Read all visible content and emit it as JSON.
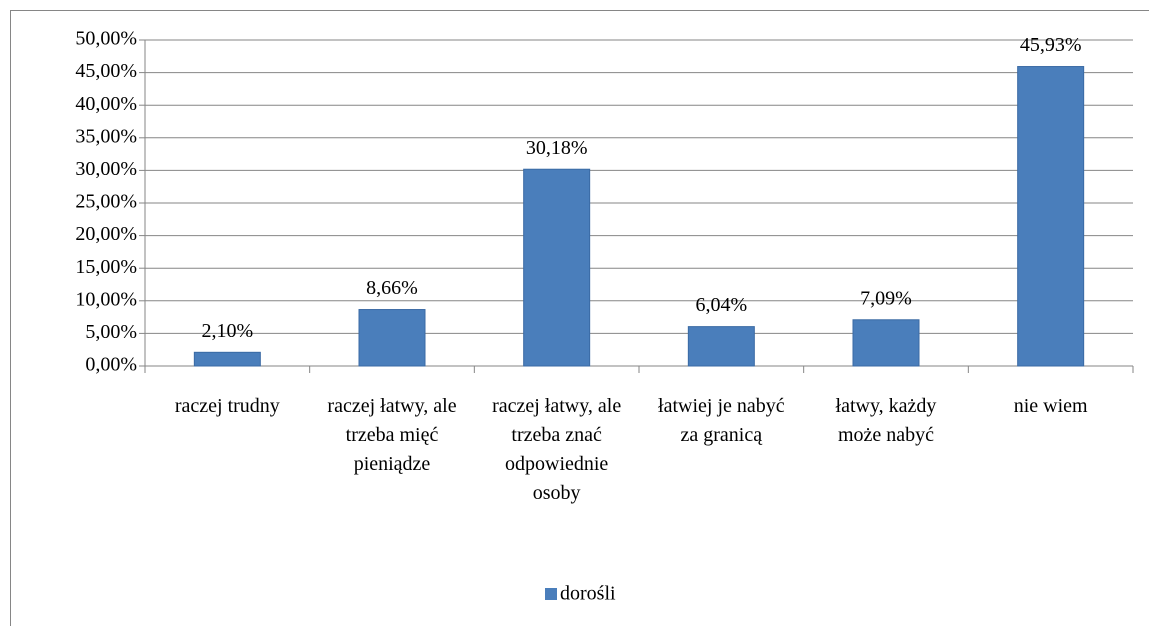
{
  "chart_data": {
    "type": "bar",
    "categories": [
      "raczej trudny",
      "raczej łatwy, ale trzeba mięć pieniądze",
      "raczej łatwy, ale trzeba znać odpowiednie osoby",
      "łatwiej je nabyć za granicą",
      "łatwy, każdy może nabyć",
      "nie wiem"
    ],
    "series": [
      {
        "name": "dorośli",
        "color": "#4a7ebb",
        "values": [
          2.1,
          8.66,
          30.18,
          6.04,
          7.09,
          45.93
        ],
        "value_labels": [
          "2,10%",
          "8,66%",
          "30,18%",
          "6,04%",
          "7,09%",
          "45,93%"
        ]
      }
    ],
    "ylim": [
      0,
      50
    ],
    "yticks": [
      {
        "value": 0,
        "label": "0,00%"
      },
      {
        "value": 5,
        "label": "5,00%"
      },
      {
        "value": 10,
        "label": "10,00%"
      },
      {
        "value": 15,
        "label": "15,00%"
      },
      {
        "value": 20,
        "label": "20,00%"
      },
      {
        "value": 25,
        "label": "25,00%"
      },
      {
        "value": 30,
        "label": "30,00%"
      },
      {
        "value": 35,
        "label": "35,00%"
      },
      {
        "value": 40,
        "label": "40,00%"
      },
      {
        "value": 45,
        "label": "45,00%"
      },
      {
        "value": 50,
        "label": "50,00%"
      }
    ],
    "grid": true,
    "legend": "bottom"
  }
}
